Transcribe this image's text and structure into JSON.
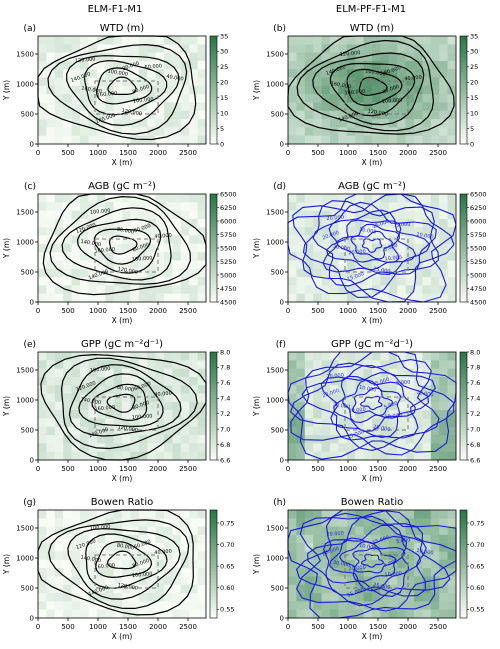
{
  "column_titles": [
    "ELM-F1-M1",
    "ELM-PF-F1-M1"
  ],
  "chart_data": [
    {
      "type": "heatmap",
      "label": "(a)",
      "title": "WTD (m)",
      "xlabel": "X (m)",
      "ylabel": "Y (m)",
      "xticks": [
        "0",
        "500",
        "1000",
        "1500",
        "2000",
        "2500"
      ],
      "yticks": [
        "0",
        "500",
        "1000",
        "1500"
      ],
      "colorbar_ticks": [
        "0",
        "5",
        "10",
        "15",
        "20",
        "25",
        "30",
        "35"
      ],
      "colorbar_range": [
        0,
        35
      ],
      "cmap": "green",
      "contour_color": "#000000",
      "contour_labels": [
        "80.000",
        "100.000",
        "120.000",
        "140.000",
        "160.000",
        "160.000",
        "140.000",
        "120.000",
        "100.000",
        "80.000",
        "60.000",
        "40.000"
      ],
      "xlim": [
        0,
        2800
      ],
      "ylim": [
        0,
        1800
      ],
      "grid": false
    },
    {
      "type": "heatmap",
      "label": "(b)",
      "title": "WTD (m)",
      "xlabel": "X (m)",
      "ylabel": "Y (m)",
      "xticks": [
        "0",
        "500",
        "1000",
        "1500",
        "2000",
        "2500"
      ],
      "yticks": [
        "0",
        "500",
        "1000",
        "1500"
      ],
      "colorbar_ticks": [
        "0",
        "5",
        "10",
        "15",
        "20",
        "25",
        "30",
        "35"
      ],
      "colorbar_range": [
        0,
        35
      ],
      "cmap": "green",
      "contour_color": "#000000",
      "contour_labels": [
        "80.000",
        "100.000",
        "120.000",
        "140.000",
        "160.000",
        "160.000",
        "140.000",
        "120.000",
        "100.000",
        "80.000",
        "40.000"
      ],
      "xlim": [
        0,
        2800
      ],
      "ylim": [
        0,
        1800
      ],
      "grid": false
    },
    {
      "type": "heatmap",
      "label": "(c)",
      "title": "AGB (gC m⁻²)",
      "xlabel": "X (m)",
      "ylabel": "Y (m)",
      "xticks": [
        "0",
        "500",
        "1000",
        "1500",
        "2000",
        "2500"
      ],
      "yticks": [
        "0",
        "500",
        "1000",
        "1500"
      ],
      "colorbar_ticks": [
        "4500",
        "4750",
        "5000",
        "5250",
        "5500",
        "5750",
        "6000",
        "6250",
        "6500"
      ],
      "colorbar_range": [
        4500,
        6500
      ],
      "cmap": "green",
      "contour_color": "#000000",
      "contour_labels": [
        "80.000",
        "100.000",
        "120.000",
        "140.000",
        "160.000",
        "140.000",
        "120.000",
        "100.000",
        "80.000",
        "60.000",
        "40.000"
      ],
      "xlim": [
        0,
        2800
      ],
      "ylim": [
        0,
        1800
      ],
      "grid": false
    },
    {
      "type": "heatmap",
      "label": "(d)",
      "title": "AGB (gC m⁻²)",
      "xlabel": "X (m)",
      "ylabel": "Y (m)",
      "xticks": [
        "0",
        "500",
        "1000",
        "1500",
        "2000",
        "2500"
      ],
      "yticks": [
        "0",
        "500",
        "1000",
        "1500"
      ],
      "colorbar_ticks": [
        "4500",
        "4750",
        "5000",
        "5250",
        "5500",
        "5750",
        "6000",
        "6250",
        "6500"
      ],
      "colorbar_range": [
        4500,
        6500
      ],
      "cmap": "green",
      "contour_color": "#1a1adb",
      "contour_labels": [
        "5.000",
        "10.000",
        "25.000",
        "15.000",
        "20.000",
        "30.000",
        "20.000",
        "20.000",
        "10.000",
        "15.000",
        "5.000",
        "10.000"
      ],
      "xlim": [
        0,
        2800
      ],
      "ylim": [
        0,
        1800
      ],
      "grid": false
    },
    {
      "type": "heatmap",
      "label": "(e)",
      "title": "GPP (gC m⁻²d⁻¹)",
      "xlabel": "X (m)",
      "ylabel": "Y (m)",
      "xticks": [
        "0",
        "500",
        "1000",
        "1500",
        "2000",
        "2500"
      ],
      "yticks": [
        "0",
        "500",
        "1000",
        "1500"
      ],
      "colorbar_ticks": [
        "6.6",
        "6.8",
        "7.0",
        "7.2",
        "7.4",
        "7.6",
        "7.8",
        "8.0"
      ],
      "colorbar_range": [
        6.6,
        8.0
      ],
      "cmap": "green",
      "contour_color": "#000000",
      "contour_labels": [
        "80.000",
        "100.000",
        "120.000",
        "140.000",
        "160.000",
        "140.000",
        "120.000",
        "100.000",
        "80.000",
        "60.000",
        "40.000"
      ],
      "xlim": [
        0,
        2800
      ],
      "ylim": [
        0,
        1800
      ],
      "grid": false
    },
    {
      "type": "heatmap",
      "label": "(f)",
      "title": "GPP (gC m⁻²d⁻¹)",
      "xlabel": "X (m)",
      "ylabel": "Y (m)",
      "xticks": [
        "0",
        "500",
        "1000",
        "1500",
        "2000",
        "2500"
      ],
      "yticks": [
        "0",
        "500",
        "1000",
        "1500"
      ],
      "colorbar_ticks": [
        "6.6",
        "6.8",
        "7.0",
        "7.2",
        "7.4",
        "7.6",
        "7.8",
        "8.0"
      ],
      "colorbar_range": [
        6.6,
        8.0
      ],
      "cmap": "green",
      "contour_color": "#1a1adb",
      "contour_labels": [
        "5.000",
        "10.000",
        "25.000",
        "15.000",
        "20.000",
        "30.000",
        "20.000",
        "20.000",
        "10.000",
        "15.000",
        "5.000",
        "10.000"
      ],
      "xlim": [
        0,
        2800
      ],
      "ylim": [
        0,
        1800
      ],
      "grid": false
    },
    {
      "type": "heatmap",
      "label": "(g)",
      "title": "Bowen Ratio",
      "xlabel": "X (m)",
      "ylabel": "Y (m)",
      "xticks": [
        "0",
        "500",
        "1000",
        "1500",
        "2000",
        "2500"
      ],
      "yticks": [
        "0",
        "500",
        "1000",
        "1500"
      ],
      "colorbar_ticks": [
        "0.55",
        "0.60",
        "0.65",
        "0.70",
        "0.75"
      ],
      "colorbar_range": [
        0.53,
        0.78
      ],
      "cmap": "green",
      "contour_color": "#000000",
      "contour_labels": [
        "80.000",
        "100.000",
        "120.000",
        "140.000",
        "160.000",
        "140.000",
        "120.000",
        "100.000",
        "80.000",
        "60.000",
        "40.000"
      ],
      "xlim": [
        0,
        2800
      ],
      "ylim": [
        0,
        1800
      ],
      "grid": false
    },
    {
      "type": "heatmap",
      "label": "(h)",
      "title": "Bowen Ratio",
      "xlabel": "X (m)",
      "ylabel": "Y (m)",
      "xticks": [
        "0",
        "500",
        "1000",
        "1500",
        "2000",
        "2500"
      ],
      "yticks": [
        "0",
        "500",
        "1000",
        "1500"
      ],
      "colorbar_ticks": [
        "0.55",
        "0.60",
        "0.65",
        "0.70",
        "0.75"
      ],
      "colorbar_range": [
        0.53,
        0.78
      ],
      "cmap": "green",
      "contour_color": "#1a1adb",
      "contour_labels": [
        "5.000",
        "10.000",
        "25.000",
        "15.000",
        "20.000",
        "30.000",
        "20.000",
        "20.000",
        "10.000",
        "15.000",
        "5.000",
        "10.000"
      ],
      "xlim": [
        0,
        2800
      ],
      "ylim": [
        0,
        1800
      ],
      "grid": false
    }
  ]
}
